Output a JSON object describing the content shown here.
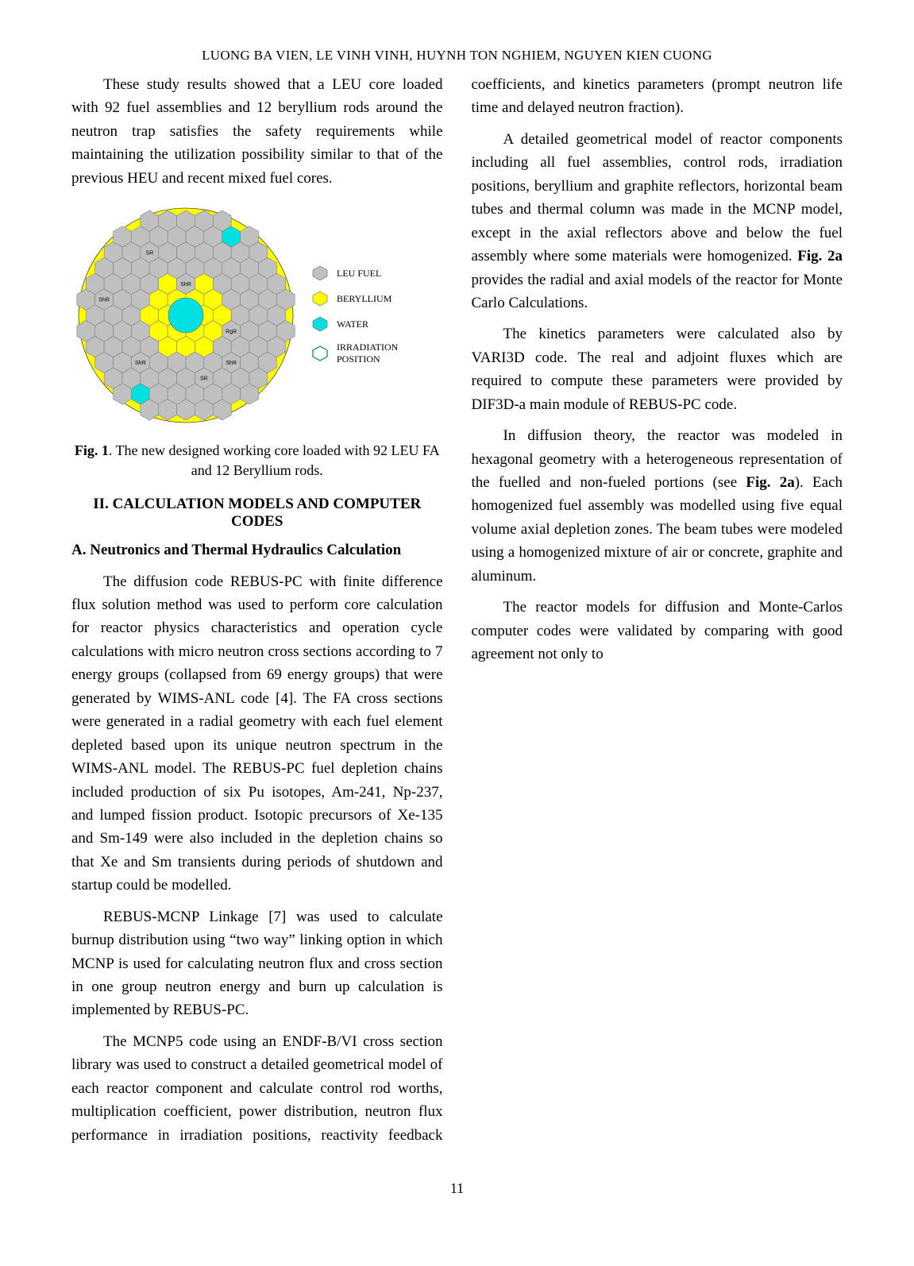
{
  "header": {
    "authors": "LUONG BA VIEN, LE VINH VINH, HUYNH TON NGHIEM, NGUYEN KIEN CUONG"
  },
  "paragraphs": {
    "p1": "These study results showed that a LEU core loaded with 92 fuel assemblies and 12 beryllium rods around the neutron trap satisfies the safety requirements while maintaining the utilization possibility similar to that of the previous HEU and recent mixed fuel cores.",
    "p2a": "The diffusion code REBUS-PC with finite difference flux solution method was used to perform core calculation for reactor physics characteristics and operation cycle calculations with micro neutron cross sections according to 7 energy groups (collapsed from 69 energy groups) that were generated by WIMS-ANL code [4].  The FA cross sections were generated in a radial geometry with each fuel element depleted based upon its unique neutron spectrum in the WIMS-ANL model. The REBUS-PC fuel depletion chains included production of six Pu isotopes, Am-241, Np-237, and lumped fission product.  Isotopic precursors of Xe-135 and Sm-149 were also included in the depletion chains so that Xe and Sm transients during periods of shutdown and startup could be modelled.",
    "p3": "REBUS-MCNP Linkage [7] was used to calculate burnup distribution using “two way” linking option in which MCNP is used for calculating neutron flux and cross section in one group neutron energy and burn up calculation is implemented by REBUS-PC.",
    "p4": "The MCNP5 code using an ENDF-B/VI cross section library was used to construct a detailed geometrical model of each reactor component and calculate control rod worths, multiplication coefficient, power distribution, neutron flux performance in irradiation positions, reactivity feedback coefficients, and kinetics parameters (prompt neutron life time and delayed neutron fraction).",
    "p5a": "A detailed geometrical model of reactor components including all fuel assemblies, control rods, irradiation positions, beryllium and graphite reflectors, horizontal beam tubes and thermal column was made in the MCNP model, except in the axial reflectors above and below the fuel assembly where some materials were homogenized. ",
    "p5b": "Fig. 2a",
    "p5c": " provides the radial and axial models of the reactor for Monte Carlo Calculations.",
    "p6": "The kinetics parameters were calculated also by VARI3D code. The real and adjoint fluxes which are required to compute these parameters were provided by DIF3D-a main module of REBUS-PC code.",
    "p7a": "In diffusion theory, the reactor was modeled in hexagonal geometry with a heterogeneous representation of the fuelled and non-fueled portions (see ",
    "p7b": "Fig. 2a",
    "p7c": "). Each homogenized fuel assembly was modelled using five equal volume axial depletion zones. The beam tubes were modeled using a homogenized mixture of air or concrete, graphite and aluminum.",
    "p8": "The reactor models for diffusion and Monte-Carlos computer codes were validated by comparing with good agreement not only to"
  },
  "figure1": {
    "caption_prefix": "Fig. 1",
    "caption_rest": ". The new designed working core loaded with 92 LEU FA and 12 Beryllium rods.",
    "legend": {
      "leu": "LEU FUEL",
      "be": "BERYLLIUM",
      "water": "WATER",
      "irr": "IRRADIATION POSITION"
    },
    "colors": {
      "leu": "#c0c0c0",
      "be": "#ffff00",
      "water": "#00e0e0",
      "irr_stroke": "#008080",
      "circle_bg": "#ffff00",
      "hex_stroke": "#808080",
      "label_text": "#000000"
    },
    "labels": {
      "sr": "SR",
      "shr": "ShR",
      "rgr": "RgR"
    }
  },
  "sections": {
    "s2": "II. CALCULATION MODELS AND COMPUTER CODES",
    "s2a": "A. Neutronics and Thermal Hydraulics Calculation"
  },
  "page_number": "11"
}
